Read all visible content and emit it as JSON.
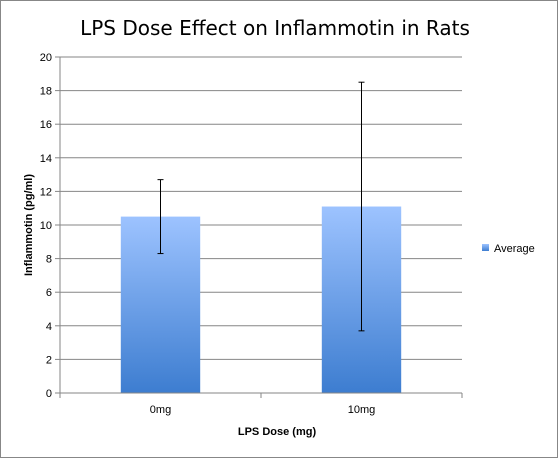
{
  "chart_data": {
    "type": "bar",
    "title": "LPS Dose Effect on Inflammotin in Rats",
    "xlabel": "LPS Dose (mg)",
    "ylabel": "Inflammotin (pg/ml)",
    "categories": [
      "0mg",
      "10mg"
    ],
    "series": [
      {
        "name": "Average",
        "values": [
          10.5,
          11.1
        ],
        "error_low": [
          8.3,
          3.7
        ],
        "error_high": [
          12.7,
          18.5
        ]
      }
    ],
    "ylim": [
      0,
      20
    ],
    "yticks": [
      0,
      2,
      4,
      6,
      8,
      10,
      12,
      14,
      16,
      18,
      20
    ],
    "grid": true,
    "legend": "right",
    "colors": {
      "bar_top": "#9DC3FF",
      "bar_bottom": "#3D7DD0",
      "grid": "#868686",
      "axis": "#868686"
    }
  }
}
